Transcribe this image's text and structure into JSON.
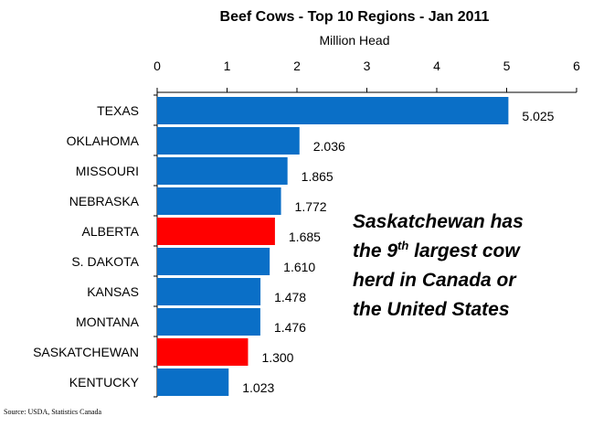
{
  "chart_data": {
    "type": "bar",
    "orientation": "horizontal",
    "title": "Beef Cows - Top 10 Regions - Jan 2011",
    "subtitle": "Million Head",
    "xlim": [
      0,
      6
    ],
    "xticks": [
      "0",
      "1",
      "2",
      "3",
      "4",
      "5",
      "6"
    ],
    "axis_position": "top",
    "grid": false,
    "categories": [
      "TEXAS",
      "OKLAHOMA",
      "MISSOURI",
      "NEBRASKA",
      "ALBERTA",
      "S. DAKOTA",
      "KANSAS",
      "MONTANA",
      "SASKATCHEWAN",
      "KENTUCKY"
    ],
    "values": [
      5.025,
      2.036,
      1.865,
      1.772,
      1.685,
      1.61,
      1.478,
      1.476,
      1.3,
      1.023
    ],
    "value_labels": [
      "5.025",
      "2.036",
      "1.865",
      "1.772",
      "1.685",
      "1.610",
      "1.478",
      "1.476",
      "1.300",
      "1.023"
    ],
    "highlighted": [
      "ALBERTA",
      "SASKATCHEWAN"
    ],
    "colors": {
      "default": "#0A6FC7",
      "highlight": "#FF0000"
    },
    "annotation": {
      "line1": "Saskatchewan has",
      "line2_prefix": "the 9",
      "line2_sup": "th",
      "line2_suffix": " largest cow",
      "line3": "herd in Canada or",
      "line4": "the United States"
    }
  },
  "source": "Source:    USDA, Statistics Canada"
}
